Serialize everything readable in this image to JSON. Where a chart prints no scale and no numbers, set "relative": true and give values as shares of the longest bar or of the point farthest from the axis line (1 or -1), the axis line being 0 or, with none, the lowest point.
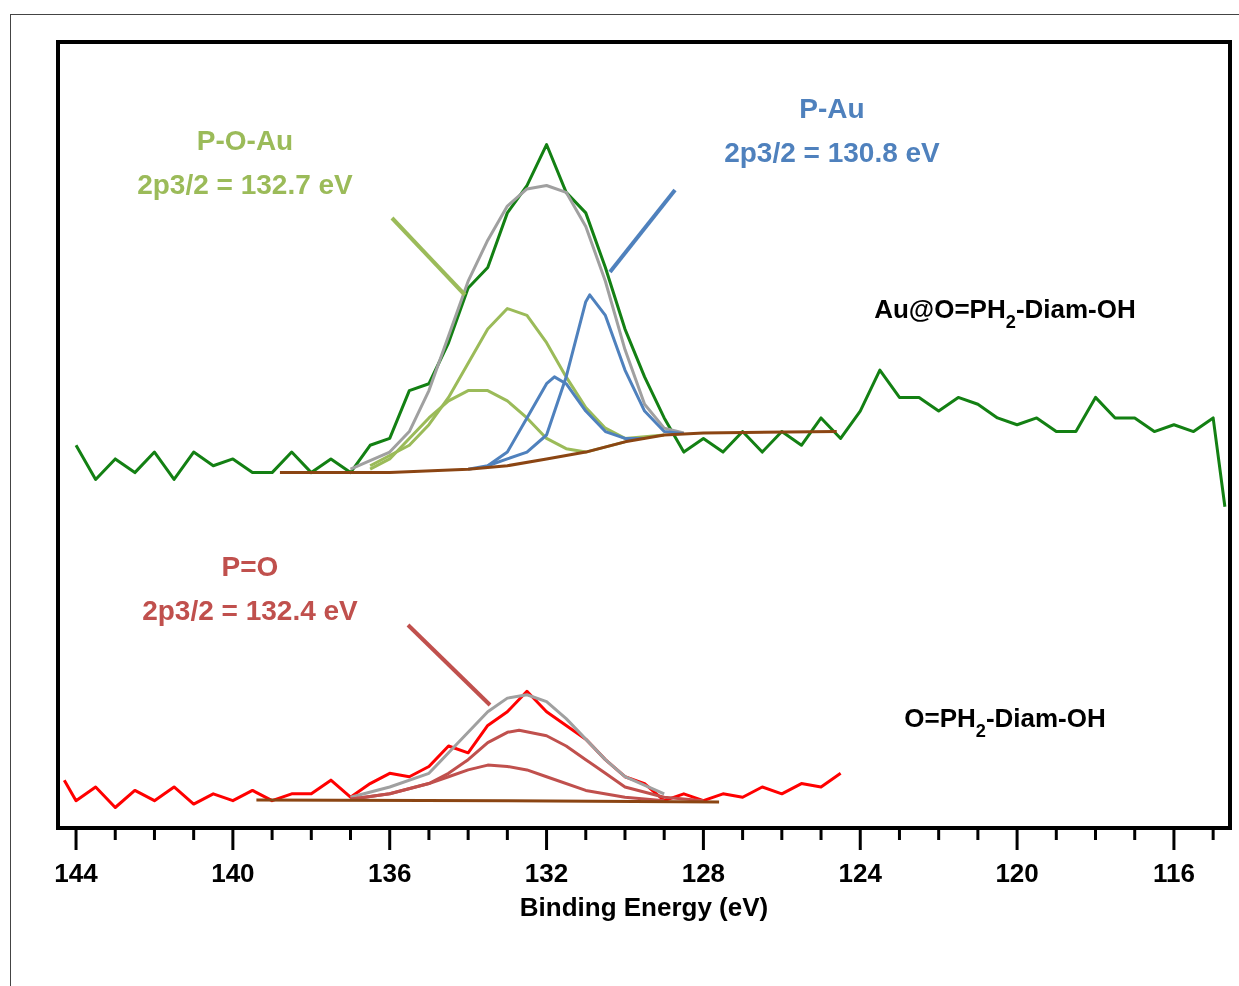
{
  "chart_data": {
    "type": "line",
    "relative": true,
    "xlabel": "Binding Energy (eV)",
    "xlim": [
      144.46,
      114.57
    ],
    "xticks": [
      144,
      {
        "value": 143,
        "label": null
      },
      {
        "value": 142,
        "label": null
      },
      {
        "value": 141,
        "label": null
      },
      140,
      {
        "value": 139,
        "label": null
      },
      {
        "value": 138,
        "label": null
      },
      {
        "value": 137,
        "label": null
      },
      136,
      {
        "value": 135,
        "label": null
      },
      {
        "value": 134,
        "label": null
      },
      {
        "value": 133,
        "label": null
      },
      132,
      {
        "value": 131,
        "label": null
      },
      {
        "value": 130,
        "label": null
      },
      {
        "value": 129,
        "label": null
      },
      128,
      {
        "value": 127,
        "label": null
      },
      {
        "value": 126,
        "label": null
      },
      {
        "value": 125,
        "label": null
      },
      124,
      {
        "value": 123,
        "label": null
      },
      {
        "value": 122,
        "label": null
      },
      {
        "value": 121,
        "label": null
      },
      120,
      {
        "value": 119,
        "label": null
      },
      {
        "value": 118,
        "label": null
      },
      {
        "value": 117,
        "label": null
      },
      116,
      {
        "value": 115,
        "label": null
      }
    ],
    "marker": "none",
    "line_style": "solid",
    "annotations": [
      "P-O-Au\n2p3/2 = 132.7 eV",
      "P-Au\n2p3/2 = 130.8 eV",
      "P=O\n2p3/2 = 132.4 eV"
    ],
    "series": [
      {
        "name": "Au@O=PH$_{2}$-Diam-OH",
        "color": "#138013",
        "x": [
          144,
          143.5,
          143,
          142.5,
          142,
          141.5,
          141,
          140.5,
          140,
          139.5,
          139,
          138.5,
          138,
          137.5,
          137,
          136.5,
          136,
          135.5,
          135,
          134.5,
          134,
          133.5,
          133,
          132.5,
          132,
          131.5,
          131,
          130.5,
          130,
          129.5,
          129,
          128.5,
          128,
          127.5,
          127,
          126.5,
          126,
          125.5,
          125,
          124.5,
          124,
          123.5,
          123,
          122.5,
          122,
          121.5,
          121,
          120.5,
          120,
          119.5,
          119,
          118.5,
          118,
          117.5,
          117,
          116.5,
          116,
          115.5,
          115,
          114.7
        ],
        "values": [
          0.56,
          0.51,
          0.54,
          0.52,
          0.55,
          0.51,
          0.55,
          0.53,
          0.54,
          0.52,
          0.52,
          0.55,
          0.52,
          0.54,
          0.52,
          0.56,
          0.57,
          0.64,
          0.65,
          0.71,
          0.79,
          0.82,
          0.9,
          0.94,
          1.0,
          0.93,
          0.9,
          0.82,
          0.73,
          0.66,
          0.6,
          0.55,
          0.57,
          0.55,
          0.58,
          0.55,
          0.58,
          0.56,
          0.6,
          0.57,
          0.61,
          0.67,
          0.63,
          0.63,
          0.61,
          0.63,
          0.62,
          0.6,
          0.59,
          0.6,
          0.58,
          0.58,
          0.63,
          0.6,
          0.6,
          0.58,
          0.59,
          0.58,
          0.6,
          0.47
        ]
      },
      {
        "color": "#a0a0a0",
        "x": [
          137,
          136,
          135.5,
          135,
          134.5,
          134,
          133.5,
          133,
          132.5,
          132,
          131.5,
          131,
          130.5,
          130,
          129.5,
          129,
          128.5
        ],
        "values": [
          0.525,
          0.55,
          0.58,
          0.64,
          0.72,
          0.8,
          0.86,
          0.91,
          0.935,
          0.94,
          0.93,
          0.88,
          0.8,
          0.7,
          0.62,
          0.585,
          0.578
        ]
      },
      {
        "color": "#9bbb59",
        "x": [
          136.5,
          135.5,
          135,
          134.5,
          134,
          133.5,
          133,
          132.5,
          132,
          131.5,
          131,
          130.5,
          130,
          129
        ],
        "values": [
          0.53,
          0.56,
          0.59,
          0.63,
          0.68,
          0.73,
          0.76,
          0.75,
          0.71,
          0.66,
          0.615,
          0.585,
          0.57,
          0.575
        ]
      },
      {
        "color": "#9bbb59",
        "x": [
          136.5,
          136,
          135.5,
          135,
          134.5,
          134,
          133.5,
          133,
          132.5,
          132,
          131.5,
          131,
          130
        ],
        "values": [
          0.525,
          0.54,
          0.57,
          0.6,
          0.625,
          0.64,
          0.64,
          0.625,
          0.6,
          0.57,
          0.555,
          0.55,
          0.565
        ]
      },
      {
        "color": "#4f81bd",
        "x": [
          133.5,
          133,
          132.5,
          132,
          131.5,
          131,
          130.9,
          130.5,
          130,
          129.5,
          129,
          128.5
        ],
        "values": [
          0.53,
          0.54,
          0.55,
          0.575,
          0.66,
          0.77,
          0.78,
          0.75,
          0.67,
          0.61,
          0.58,
          0.577
        ]
      },
      {
        "color": "#4f81bd",
        "x": [
          134,
          133.5,
          133,
          132.5,
          132,
          131.8,
          131.5,
          131,
          130.5,
          130,
          129.5
        ],
        "values": [
          0.525,
          0.53,
          0.55,
          0.6,
          0.65,
          0.66,
          0.65,
          0.61,
          0.58,
          0.57,
          0.57
        ]
      },
      {
        "color": "#8b4513",
        "x": [
          138.8,
          136,
          134,
          133,
          132,
          131,
          130,
          129,
          128,
          124.6
        ],
        "values": [
          0.52,
          0.52,
          0.525,
          0.53,
          0.54,
          0.55,
          0.565,
          0.575,
          0.578,
          0.58
        ]
      },
      {
        "name": "O=PH$_{2}$-Diam-OH",
        "color": "#ff0000",
        "x": [
          144.3,
          144,
          143.5,
          143,
          142.5,
          142,
          141.5,
          141,
          140.5,
          140,
          139.5,
          139,
          138.5,
          138,
          137.5,
          137,
          136.5,
          136,
          135.5,
          135,
          134.5,
          134,
          133.5,
          133,
          132.5,
          132,
          131.5,
          131,
          130.5,
          130,
          129.5,
          129,
          128.5,
          128,
          127.5,
          127,
          126.5,
          126,
          125.5,
          125,
          124.5
        ],
        "values": [
          0.07,
          0.04,
          0.06,
          0.03,
          0.055,
          0.04,
          0.06,
          0.035,
          0.05,
          0.04,
          0.055,
          0.04,
          0.05,
          0.05,
          0.07,
          0.045,
          0.065,
          0.08,
          0.075,
          0.09,
          0.12,
          0.11,
          0.15,
          0.17,
          0.2,
          0.17,
          0.15,
          0.13,
          0.1,
          0.075,
          0.065,
          0.04,
          0.05,
          0.04,
          0.05,
          0.045,
          0.06,
          0.05,
          0.065,
          0.06,
          0.08
        ]
      },
      {
        "color": "#a0a0a0",
        "x": [
          137,
          136,
          135,
          134.5,
          134,
          133.5,
          133,
          132.5,
          132,
          131.5,
          131,
          130.5,
          130,
          129
        ],
        "values": [
          0.045,
          0.06,
          0.08,
          0.11,
          0.14,
          0.17,
          0.19,
          0.195,
          0.185,
          0.16,
          0.13,
          0.1,
          0.075,
          0.05
        ]
      },
      {
        "color": "#c0504d",
        "x": [
          137,
          136,
          135,
          134.5,
          134,
          133.5,
          133,
          132.7,
          132,
          131.5,
          131,
          130.5,
          130,
          129,
          128
        ],
        "values": [
          0.042,
          0.05,
          0.065,
          0.08,
          0.1,
          0.125,
          0.14,
          0.143,
          0.135,
          0.12,
          0.1,
          0.08,
          0.06,
          0.045,
          0.04
        ]
      },
      {
        "color": "#c0504d",
        "x": [
          137,
          136,
          135,
          134.5,
          134,
          133.5,
          133,
          132.5,
          132,
          131,
          130,
          129
        ],
        "values": [
          0.042,
          0.05,
          0.065,
          0.075,
          0.085,
          0.092,
          0.09,
          0.085,
          0.075,
          0.055,
          0.045,
          0.04
        ]
      },
      {
        "color": "#8b4513",
        "x": [
          139.4,
          133,
          127.6
        ],
        "values": [
          0.041,
          0.04,
          0.038
        ]
      }
    ]
  }
}
